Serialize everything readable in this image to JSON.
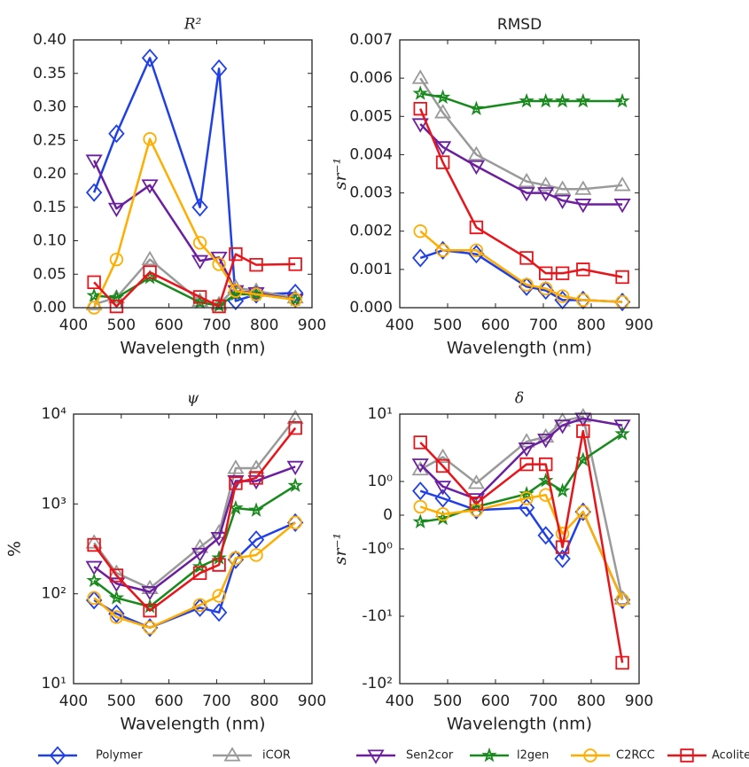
{
  "chart_data": [
    {
      "type": "line",
      "title": "R²",
      "xlabel": "Wavelength (nm)",
      "legend": "bottom",
      "x": [
        443,
        490,
        560,
        665,
        705,
        740,
        783,
        865
      ],
      "xlim": [
        400,
        900
      ],
      "xticks": [
        400,
        500,
        600,
        700,
        800,
        900
      ],
      "ylim": [
        0,
        0.4
      ],
      "yticks": [
        {
          "value": 0,
          "label": "0.00"
        },
        {
          "value": 0.05,
          "label": "0.05"
        },
        {
          "value": 0.1,
          "label": "0.10"
        },
        {
          "value": 0.15,
          "label": "0.15"
        },
        {
          "value": 0.2,
          "label": "0.20"
        },
        {
          "value": 0.25,
          "label": "0.25"
        },
        {
          "value": 0.3,
          "label": "0.30"
        },
        {
          "value": 0.35,
          "label": "0.35"
        },
        {
          "value": 0.4,
          "label": "0.40"
        }
      ],
      "series": [
        {
          "name": "Polymer",
          "color": "#1f3fe8",
          "marker": "D",
          "values": [
            0.172,
            0.26,
            0.373,
            0.15,
            0.357,
            0.01,
            0.02,
            0.022
          ]
        },
        {
          "name": "iCOR",
          "color": "#9a9a9a",
          "marker": "^",
          "values": [
            0.005,
            0.015,
            0.072,
            0.01,
            0.005,
            0.03,
            0.025,
            0.015
          ]
        },
        {
          "name": "Sen2cor",
          "color": "#6b1f9e",
          "marker": "v",
          "values": [
            0.22,
            0.148,
            0.183,
            0.07,
            0.075,
            0.025,
            0.022,
            0.012
          ]
        },
        {
          "name": "l2gen",
          "color": "#18891c",
          "marker": "*",
          "values": [
            0.018,
            0.015,
            0.045,
            0.008,
            0.003,
            0.02,
            0.02,
            0.012
          ]
        },
        {
          "name": "C2RCC",
          "color": "#ffae00",
          "marker": "o",
          "values": [
            0,
            0.072,
            0.252,
            0.097,
            0.065,
            0.025,
            0.02,
            0.012
          ]
        },
        {
          "name": "Acolite",
          "color": "#e8141a",
          "marker": "s",
          "values": [
            0.038,
            0.002,
            0.053,
            0.016,
            0.002,
            0.08,
            0.064,
            0.065
          ]
        }
      ]
    },
    {
      "type": "line",
      "title": "RMSD",
      "xlabel": "Wavelength (nm)",
      "ylabel": "sr⁻¹",
      "x": [
        443,
        490,
        560,
        665,
        705,
        740,
        783,
        865
      ],
      "xlim": [
        400,
        900
      ],
      "xticks": [
        400,
        500,
        600,
        700,
        800,
        900
      ],
      "ylim": [
        0,
        0.007
      ],
      "yticks": [
        {
          "value": 0,
          "label": "0.000"
        },
        {
          "value": 0.001,
          "label": "0.001"
        },
        {
          "value": 0.002,
          "label": "0.002"
        },
        {
          "value": 0.003,
          "label": "0.003"
        },
        {
          "value": 0.004,
          "label": "0.004"
        },
        {
          "value": 0.005,
          "label": "0.005"
        },
        {
          "value": 0.006,
          "label": "0.006"
        },
        {
          "value": 0.007,
          "label": "0.007"
        }
      ],
      "series": [
        {
          "name": "Polymer",
          "color": "#1f3fe8",
          "marker": "D",
          "values": [
            0.0013,
            0.0015,
            0.0014,
            0.00055,
            0.00045,
            0.0002,
            0.0002,
            0.00015
          ]
        },
        {
          "name": "iCOR",
          "color": "#9a9a9a",
          "marker": "^",
          "values": [
            0.006,
            0.0051,
            0.004,
            0.0033,
            0.0032,
            0.0031,
            0.0031,
            0.0032
          ]
        },
        {
          "name": "Sen2cor",
          "color": "#6b1f9e",
          "marker": "v",
          "values": [
            0.0048,
            0.0042,
            0.0037,
            0.003,
            0.003,
            0.0028,
            0.0027,
            0.0027
          ]
        },
        {
          "name": "l2gen",
          "color": "#18891c",
          "marker": "*",
          "values": [
            0.0056,
            0.0055,
            0.0052,
            0.0054,
            0.0054,
            0.0054,
            0.0054,
            0.0054
          ]
        },
        {
          "name": "C2RCC",
          "color": "#ffae00",
          "marker": "o",
          "values": [
            0.002,
            0.0015,
            0.0015,
            0.0006,
            0.0005,
            0.0003,
            0.0002,
            0.00015
          ]
        },
        {
          "name": "Acolite",
          "color": "#e8141a",
          "marker": "s",
          "values": [
            0.0052,
            0.0038,
            0.0021,
            0.0013,
            0.0009,
            0.0009,
            0.001,
            0.0008
          ]
        }
      ]
    },
    {
      "type": "line",
      "title": "ψ",
      "xlabel": "Wavelength (nm)",
      "ylabel": "%",
      "yscale": "log",
      "x": [
        443,
        490,
        560,
        665,
        705,
        740,
        783,
        865
      ],
      "xlim": [
        400,
        900
      ],
      "xticks": [
        400,
        500,
        600,
        700,
        800,
        900
      ],
      "ylim": [
        10,
        10000
      ],
      "yticks": [
        {
          "value": 10,
          "label": "10¹"
        },
        {
          "value": 100,
          "label": "10²"
        },
        {
          "value": 1000,
          "label": "10³"
        },
        {
          "value": 10000,
          "label": "10⁴"
        }
      ],
      "series": [
        {
          "name": "Polymer",
          "color": "#1f3fe8",
          "marker": "D",
          "values": [
            85,
            60,
            42,
            70,
            62,
            240,
            400,
            620
          ]
        },
        {
          "name": "iCOR",
          "color": "#9a9a9a",
          "marker": "^",
          "values": [
            370,
            170,
            115,
            330,
            480,
            2500,
            2500,
            9000
          ]
        },
        {
          "name": "Sen2cor",
          "color": "#6b1f9e",
          "marker": "v",
          "values": [
            200,
            130,
            105,
            280,
            420,
            1800,
            1800,
            2600
          ]
        },
        {
          "name": "l2gen",
          "color": "#18891c",
          "marker": "*",
          "values": [
            140,
            90,
            72,
            200,
            250,
            900,
            850,
            1600
          ]
        },
        {
          "name": "C2RCC",
          "color": "#ffae00",
          "marker": "o",
          "values": [
            90,
            55,
            42,
            75,
            95,
            250,
            270,
            620
          ]
        },
        {
          "name": "Acolite",
          "color": "#e8141a",
          "marker": "s",
          "values": [
            350,
            160,
            65,
            170,
            210,
            1700,
            1950,
            7000
          ]
        }
      ]
    },
    {
      "type": "line",
      "title": "δ",
      "xlabel": "Wavelength (nm)",
      "ylabel": "sr⁻¹",
      "yscale": "symlog",
      "linthresh": 1,
      "x": [
        443,
        490,
        560,
        665,
        705,
        740,
        783,
        865
      ],
      "xlim": [
        400,
        900
      ],
      "xticks": [
        400,
        500,
        600,
        700,
        800,
        900
      ],
      "ylim": [
        -100,
        10
      ],
      "yticks": [
        {
          "value": -100,
          "label": "-10²"
        },
        {
          "value": -10,
          "label": "-10¹"
        },
        {
          "value": -1,
          "label": "-10⁰"
        },
        0,
        {
          "value": 1,
          "label": "10⁰"
        },
        {
          "value": 10,
          "label": "10¹"
        }
      ],
      "series": [
        {
          "name": "Polymer",
          "color": "#1f3fe8",
          "marker": "D",
          "values": [
            0.72,
            0.5,
            0.15,
            0.22,
            -0.6,
            -1.4,
            0.1,
            -5.7
          ]
        },
        {
          "name": "iCOR",
          "color": "#9a9a9a",
          "marker": "^",
          "values": [
            1.5,
            2.3,
            0.95,
            3.9,
            4.6,
            7.9,
            9.2,
            -5.5
          ]
        },
        {
          "name": "Sen2cor",
          "color": "#6b1f9e",
          "marker": "v",
          "values": [
            1.8,
            0.85,
            0.48,
            3.1,
            4.2,
            6.8,
            8.6,
            6.8
          ]
        },
        {
          "name": "l2gen",
          "color": "#18891c",
          "marker": "*",
          "values": [
            -0.2,
            -0.1,
            0.25,
            0.63,
            1.03,
            0.72,
            2.1,
            5.1
          ]
        },
        {
          "name": "C2RCC",
          "color": "#ffae00",
          "marker": "o",
          "values": [
            0.25,
            0.03,
            0.15,
            0.5,
            0.6,
            -0.55,
            0.1,
            -5.7
          ]
        },
        {
          "name": "Acolite",
          "color": "#e8141a",
          "marker": "s",
          "values": [
            3.8,
            1.7,
            0.35,
            1.8,
            1.8,
            -0.95,
            5.6,
            -49
          ]
        }
      ]
    }
  ]
}
